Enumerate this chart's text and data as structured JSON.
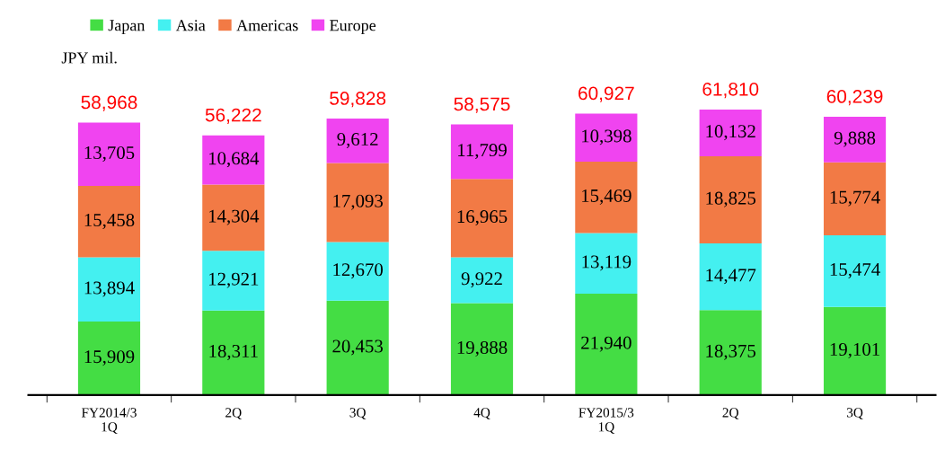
{
  "chart_data": {
    "type": "bar",
    "stacked": true,
    "ylabel": "JPY mil.",
    "categories": [
      "FY2014/3\n1Q",
      "2Q",
      "3Q",
      "4Q",
      "FY2015/3\n1Q",
      "2Q",
      "3Q"
    ],
    "series": [
      {
        "name": "Japan",
        "color": "#44dd44",
        "values": [
          15909,
          18311,
          20453,
          19888,
          21940,
          18375,
          19101
        ],
        "value_labels": [
          "15,909",
          "18,311",
          "20,453",
          "19,888",
          "21,940",
          "18,375",
          "19,101"
        ]
      },
      {
        "name": "Asia",
        "color": "#44f0f0",
        "values": [
          13894,
          12921,
          12670,
          9922,
          13119,
          14477,
          15474
        ],
        "value_labels": [
          "13,894",
          "12,921",
          "12,670",
          "9,922",
          "13,119",
          "14,477",
          "15,474"
        ]
      },
      {
        "name": "Americas",
        "color": "#f27a45",
        "values": [
          15458,
          14304,
          17093,
          16965,
          15469,
          18825,
          15774
        ],
        "value_labels": [
          "15,458",
          "14,304",
          "17,093",
          "16,965",
          "15,469",
          "18,825",
          "15,774"
        ]
      },
      {
        "name": "Europe",
        "color": "#f044f0",
        "values": [
          13705,
          10684,
          9612,
          11799,
          10398,
          10132,
          9888
        ],
        "value_labels": [
          "13,705",
          "10,684",
          "9,612",
          "11,799",
          "10,398",
          "10,132",
          "9,888"
        ]
      }
    ],
    "totals": [
      "58,968",
      "56,222",
      "59,828",
      "58,575",
      "60,927",
      "61,810",
      "60,239"
    ],
    "legend": "top left",
    "grid": false,
    "tick_labels": "x"
  }
}
